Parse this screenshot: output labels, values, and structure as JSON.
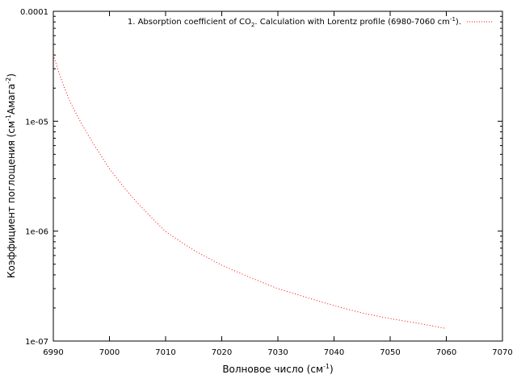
{
  "chart_data": {
    "type": "line",
    "xlabel": "Волновое число (см",
    "xlabel_sup": "-1",
    "xlabel_end": ")",
    "ylabel": "Коэффициент поглощения (см",
    "ylabel_sup1": "-1",
    "ylabel_mid": "Амага",
    "ylabel_sup2": "-2",
    "ylabel_end": ")",
    "xlim": [
      6990,
      7070
    ],
    "ylim": [
      1e-07,
      0.0001
    ],
    "yscale": "log",
    "grid": false,
    "legend_position": "top-right",
    "x_ticks": [
      6990,
      7000,
      7010,
      7020,
      7030,
      7040,
      7050,
      7060,
      7070
    ],
    "x_tick_labels": [
      "6990",
      "7000",
      "7010",
      "7020",
      "7030",
      "7040",
      "7050",
      "7060",
      "7070"
    ],
    "y_ticks": [
      1e-07,
      1e-06,
      1e-05,
      0.0001
    ],
    "y_tick_labels": [
      "1e-07",
      "1e-06",
      "1e-05",
      "0.0001"
    ],
    "series": [
      {
        "name": "1. Absorption coefficient of CO",
        "name_sub": "2",
        "name_end": ". Calculation with Lorentz profile (6980-7060 cm",
        "name_sup": "-1",
        "name_tail": ").",
        "color": "#ff0000",
        "style": "dotted",
        "x": [
          6990,
          6991,
          6992,
          6993,
          6995,
          6997,
          7000,
          7003,
          7005,
          7008,
          7010,
          7015,
          7020,
          7025,
          7030,
          7035,
          7040,
          7045,
          7050,
          7055,
          7060
        ],
        "y": [
          4e-05,
          2.75e-05,
          2e-05,
          1.5e-05,
          9.5e-06,
          6.4e-06,
          3.7e-06,
          2.35e-06,
          1.8e-06,
          1.25e-06,
          9.9e-07,
          6.7e-07,
          4.9e-07,
          3.8e-07,
          3e-07,
          2.5e-07,
          2.1e-07,
          1.8e-07,
          1.6e-07,
          1.45e-07,
          1.3e-07
        ]
      }
    ]
  }
}
